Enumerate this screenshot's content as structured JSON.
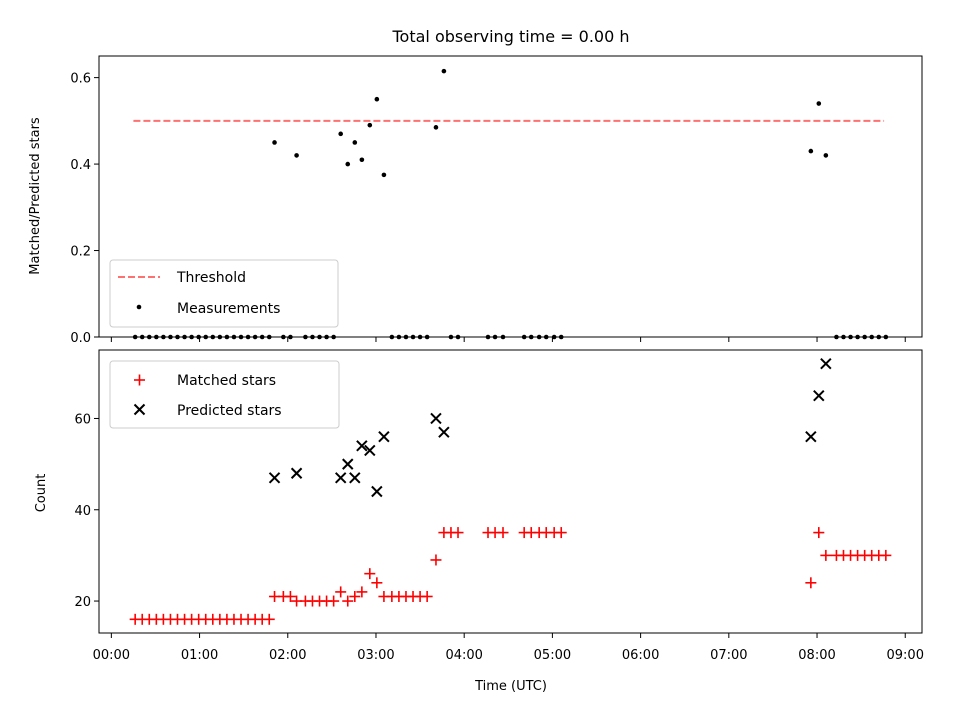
{
  "chart_data": [
    {
      "type": "scatter",
      "panel": "top",
      "title": "Total observing time = 0.00 h",
      "xlabel": "",
      "ylabel": "Matched/Predicted stars",
      "xlim_hours": [
        -0.14,
        9.19
      ],
      "ylim": [
        0.0,
        0.65
      ],
      "yticks": [
        "0.0",
        "0.2",
        "0.4",
        "0.6"
      ],
      "legend_position": "lower-left",
      "threshold": {
        "name": "Threshold",
        "value": 0.5,
        "x_start": 0.25,
        "x_end": 8.76,
        "color": "#ff7070",
        "style": "dashed"
      },
      "series": [
        {
          "name": "Measurements",
          "color": "#000000",
          "marker": "dot",
          "points": [
            [
              0.27,
              0
            ],
            [
              0.35,
              0
            ],
            [
              0.43,
              0
            ],
            [
              0.51,
              0
            ],
            [
              0.59,
              0
            ],
            [
              0.67,
              0
            ],
            [
              0.75,
              0
            ],
            [
              0.83,
              0
            ],
            [
              0.91,
              0
            ],
            [
              0.99,
              0
            ],
            [
              1.07,
              0
            ],
            [
              1.15,
              0
            ],
            [
              1.23,
              0
            ],
            [
              1.31,
              0
            ],
            [
              1.39,
              0
            ],
            [
              1.47,
              0
            ],
            [
              1.55,
              0
            ],
            [
              1.63,
              0
            ],
            [
              1.71,
              0
            ],
            [
              1.79,
              0
            ],
            [
              1.85,
              0.45
            ],
            [
              1.95,
              0
            ],
            [
              2.03,
              0
            ],
            [
              2.1,
              0.42
            ],
            [
              2.2,
              0
            ],
            [
              2.28,
              0
            ],
            [
              2.36,
              0
            ],
            [
              2.44,
              0
            ],
            [
              2.52,
              0
            ],
            [
              2.6,
              0.47
            ],
            [
              2.68,
              0.4
            ],
            [
              2.76,
              0.45
            ],
            [
              2.84,
              0.41
            ],
            [
              2.93,
              0.49
            ],
            [
              3.01,
              0.55
            ],
            [
              3.09,
              0.375
            ],
            [
              3.18,
              0
            ],
            [
              3.26,
              0
            ],
            [
              3.34,
              0
            ],
            [
              3.42,
              0
            ],
            [
              3.5,
              0
            ],
            [
              3.58,
              0
            ],
            [
              3.68,
              0.485
            ],
            [
              3.77,
              0.615
            ],
            [
              3.85,
              0
            ],
            [
              3.93,
              0
            ],
            [
              4.27,
              0
            ],
            [
              4.35,
              0
            ],
            [
              4.44,
              0
            ],
            [
              4.68,
              0
            ],
            [
              4.76,
              0
            ],
            [
              4.85,
              0
            ],
            [
              4.93,
              0
            ],
            [
              5.02,
              0
            ],
            [
              5.1,
              0
            ],
            [
              7.93,
              0.43
            ],
            [
              8.02,
              0.54
            ],
            [
              8.1,
              0.42
            ],
            [
              8.22,
              0
            ],
            [
              8.3,
              0
            ],
            [
              8.38,
              0
            ],
            [
              8.46,
              0
            ],
            [
              8.54,
              0
            ],
            [
              8.62,
              0
            ],
            [
              8.7,
              0
            ],
            [
              8.78,
              0
            ]
          ]
        }
      ]
    },
    {
      "type": "scatter",
      "panel": "bottom",
      "title": "",
      "xlabel": "Time (UTC)",
      "ylabel": "Count",
      "xlim_hours": [
        -0.14,
        9.19
      ],
      "xticks": [
        "00:00",
        "01:00",
        "02:00",
        "03:00",
        "04:00",
        "05:00",
        "06:00",
        "07:00",
        "08:00",
        "09:00"
      ],
      "ylim": [
        13,
        75
      ],
      "yticks": [
        "20",
        "40",
        "60"
      ],
      "legend_position": "upper-left",
      "series": [
        {
          "name": "Matched stars",
          "color": "#ff0000",
          "marker": "plus",
          "points": [
            [
              0.27,
              16
            ],
            [
              0.35,
              16
            ],
            [
              0.43,
              16
            ],
            [
              0.51,
              16
            ],
            [
              0.59,
              16
            ],
            [
              0.67,
              16
            ],
            [
              0.75,
              16
            ],
            [
              0.83,
              16
            ],
            [
              0.91,
              16
            ],
            [
              0.99,
              16
            ],
            [
              1.07,
              16
            ],
            [
              1.15,
              16
            ],
            [
              1.23,
              16
            ],
            [
              1.31,
              16
            ],
            [
              1.39,
              16
            ],
            [
              1.47,
              16
            ],
            [
              1.55,
              16
            ],
            [
              1.63,
              16
            ],
            [
              1.71,
              16
            ],
            [
              1.79,
              16
            ],
            [
              1.85,
              21
            ],
            [
              1.95,
              21
            ],
            [
              2.03,
              21
            ],
            [
              2.1,
              20
            ],
            [
              2.2,
              20
            ],
            [
              2.28,
              20
            ],
            [
              2.36,
              20
            ],
            [
              2.44,
              20
            ],
            [
              2.52,
              20
            ],
            [
              2.6,
              22
            ],
            [
              2.68,
              20
            ],
            [
              2.76,
              21
            ],
            [
              2.84,
              22
            ],
            [
              2.93,
              26
            ],
            [
              3.01,
              24
            ],
            [
              3.09,
              21
            ],
            [
              3.18,
              21
            ],
            [
              3.26,
              21
            ],
            [
              3.34,
              21
            ],
            [
              3.42,
              21
            ],
            [
              3.5,
              21
            ],
            [
              3.58,
              21
            ],
            [
              3.68,
              29
            ],
            [
              3.77,
              35
            ],
            [
              3.85,
              35
            ],
            [
              3.93,
              35
            ],
            [
              4.27,
              35
            ],
            [
              4.35,
              35
            ],
            [
              4.44,
              35
            ],
            [
              4.68,
              35
            ],
            [
              4.76,
              35
            ],
            [
              4.85,
              35
            ],
            [
              4.93,
              35
            ],
            [
              5.02,
              35
            ],
            [
              5.1,
              35
            ],
            [
              7.93,
              24
            ],
            [
              8.02,
              35
            ],
            [
              8.1,
              30
            ],
            [
              8.22,
              30
            ],
            [
              8.3,
              30
            ],
            [
              8.38,
              30
            ],
            [
              8.46,
              30
            ],
            [
              8.54,
              30
            ],
            [
              8.62,
              30
            ],
            [
              8.7,
              30
            ],
            [
              8.78,
              30
            ]
          ]
        },
        {
          "name": "Predicted stars",
          "color": "#000000",
          "marker": "x",
          "points": [
            [
              1.85,
              47
            ],
            [
              2.1,
              48
            ],
            [
              2.6,
              47
            ],
            [
              2.68,
              50
            ],
            [
              2.76,
              47
            ],
            [
              2.84,
              54
            ],
            [
              2.93,
              53
            ],
            [
              3.01,
              44
            ],
            [
              3.09,
              56
            ],
            [
              3.68,
              60
            ],
            [
              3.77,
              57
            ],
            [
              7.93,
              56
            ],
            [
              8.02,
              65
            ],
            [
              8.1,
              72
            ]
          ]
        }
      ]
    }
  ]
}
